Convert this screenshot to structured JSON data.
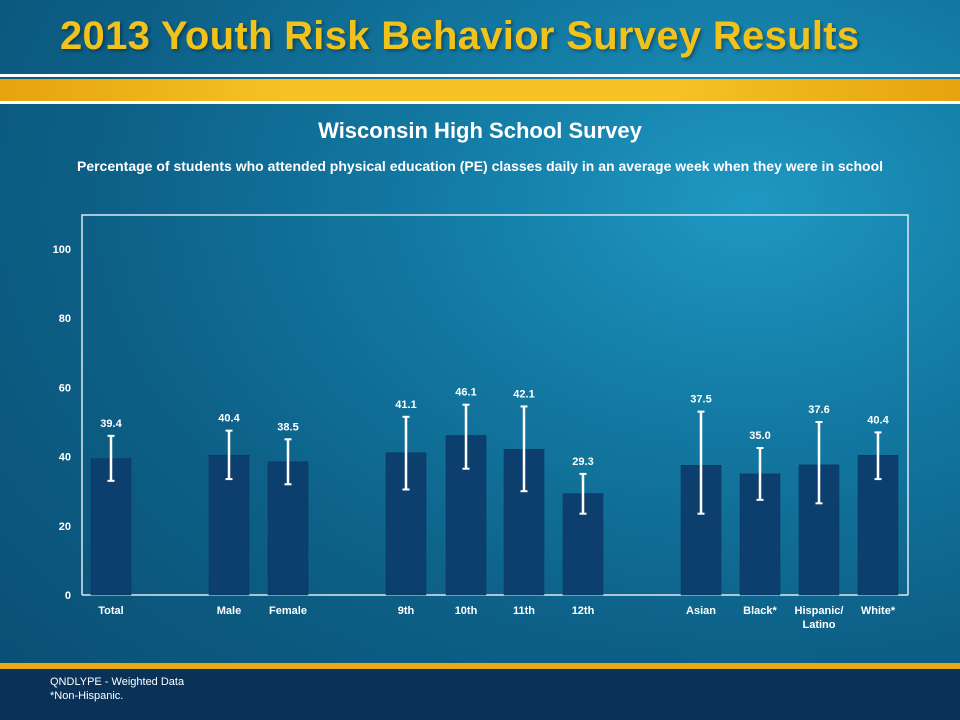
{
  "banner": {
    "title": "2013 Youth Risk Behavior Survey Results"
  },
  "colors": {
    "banner_title": "#f2c21c",
    "gold_band": "#f4c323",
    "bar": "#0d3f6e",
    "background": "#137aa3",
    "footer": "#0a3258"
  },
  "chart_data": {
    "type": "bar",
    "title": "Wisconsin High School Survey",
    "subtitle": "Percentage of students who attended physical education (PE) classes daily in an average week when they were in school",
    "xlabel": "",
    "ylabel": "",
    "ylim": [
      0,
      100
    ],
    "yticks": [
      0,
      20,
      40,
      60,
      80,
      100
    ],
    "grid": false,
    "categories": [
      "Total",
      "Male",
      "Female",
      "9th",
      "10th",
      "11th",
      "12th",
      "Asian",
      "Black*",
      "Hispanic/ Latino",
      "White*"
    ],
    "groups": [
      [
        "Total"
      ],
      [
        "Male",
        "Female"
      ],
      [
        "9th",
        "10th",
        "11th",
        "12th"
      ],
      [
        "Asian",
        "Black*",
        "Hispanic/ Latino",
        "White*"
      ]
    ],
    "values": [
      39.4,
      40.4,
      38.5,
      41.1,
      46.1,
      42.1,
      29.3,
      37.5,
      35.0,
      37.6,
      40.4
    ],
    "value_labels": [
      "39.4",
      "40.4",
      "38.5",
      "41.1",
      "46.1",
      "42.1",
      "29.3",
      "37.5",
      "35.0",
      "37.6",
      "40.4"
    ],
    "ci_low": [
      33.0,
      33.5,
      32.0,
      30.5,
      36.5,
      30.0,
      23.5,
      23.5,
      27.5,
      26.5,
      33.5
    ],
    "ci_high": [
      46.0,
      47.5,
      45.0,
      51.5,
      55.0,
      54.5,
      35.0,
      53.0,
      42.5,
      50.0,
      47.0
    ]
  },
  "footer": {
    "note1": "QNDLYPE - Weighted Data",
    "note2": "*Non-Hispanic."
  }
}
